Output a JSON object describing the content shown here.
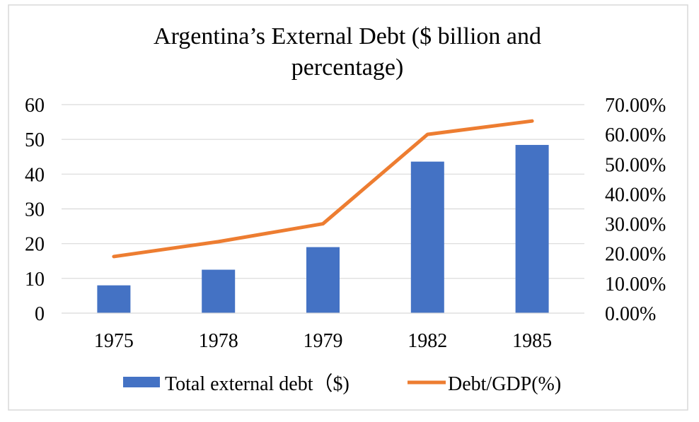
{
  "chart_data": {
    "type": "bar+line",
    "title_lines": [
      "Argentina’s External Debt ($ billion and",
      "percentage)"
    ],
    "categories": [
      "1975",
      "1978",
      "1979",
      "1982",
      "1985"
    ],
    "series": [
      {
        "name": "Total external debt（$)",
        "type": "bar",
        "axis": "left",
        "color": "#4472C4",
        "values": [
          8,
          12.5,
          19,
          43.6,
          48.4
        ]
      },
      {
        "name": "Debt/GDP(%)",
        "type": "line",
        "axis": "right",
        "color": "#ED7D31",
        "values": [
          0.19,
          0.24,
          0.3,
          0.6,
          0.645
        ]
      }
    ],
    "left_axis": {
      "min": 0,
      "max": 60,
      "step": 10
    },
    "right_axis": {
      "min": 0,
      "max": 0.7,
      "step": 0.1,
      "format": "percent2"
    },
    "grid": true,
    "legend_position": "bottom"
  },
  "colors": {
    "gridline": "#d9d9d9",
    "frame": "#d9d9d9"
  }
}
